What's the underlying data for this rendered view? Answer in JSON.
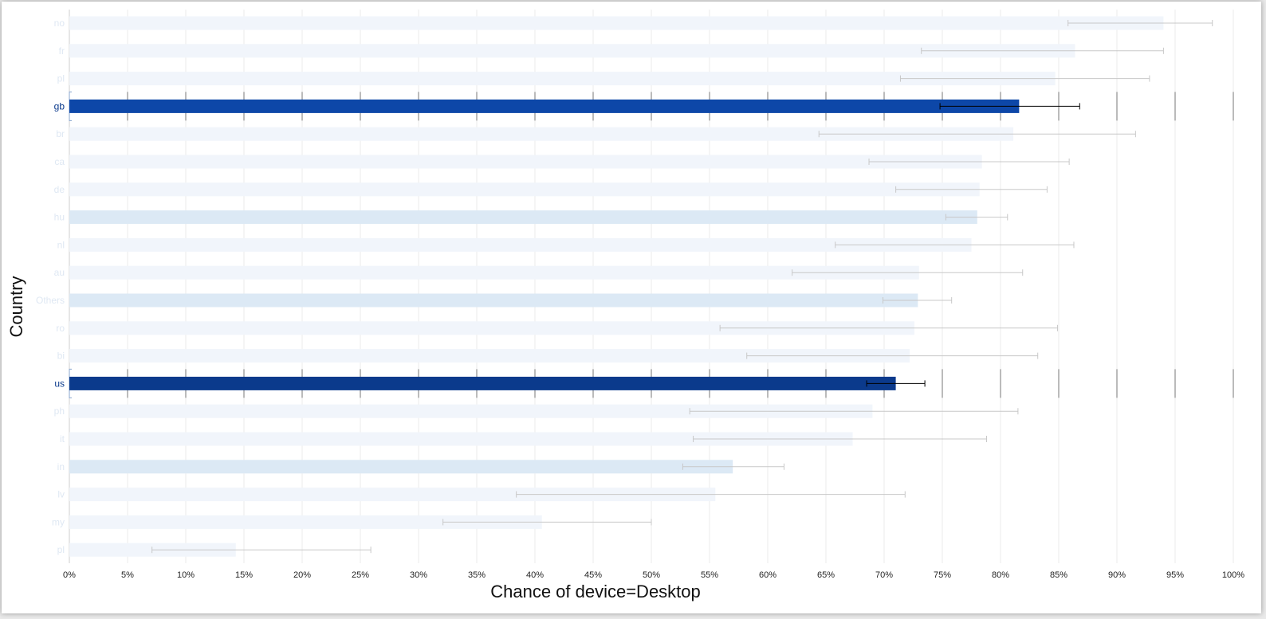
{
  "chart_data": {
    "type": "bar",
    "orientation": "horizontal",
    "xlabel": "Chance of device=Desktop",
    "ylabel": "Country",
    "xlim": [
      0,
      100
    ],
    "x_tick_labels": [
      "0%",
      "5%",
      "10%",
      "15%",
      "20%",
      "25%",
      "30%",
      "35%",
      "40%",
      "45%",
      "50%",
      "55%",
      "60%",
      "65%",
      "70%",
      "75%",
      "80%",
      "85%",
      "90%",
      "95%",
      "100%"
    ],
    "grid": "vertical",
    "highlighted": [
      "gb",
      "us"
    ],
    "categories": [
      "no",
      "fr",
      "pl",
      "gb",
      "br",
      "ca",
      "de",
      "hu",
      "nl",
      "au",
      "Others",
      "ro",
      "bi",
      "us",
      "ph",
      "it",
      "in",
      "lv",
      "my",
      "pl"
    ],
    "series": [
      {
        "values": [
          94,
          86.4,
          84.7,
          81.6,
          81.1,
          78.4,
          78.2,
          78.0,
          77.5,
          73.0,
          72.9,
          72.6,
          72.2,
          71.0,
          69.0,
          67.3,
          57.0,
          55.5,
          40.6,
          14.3
        ],
        "error_low": [
          85.8,
          73.2,
          71.4,
          74.8,
          64.4,
          68.7,
          71.0,
          75.3,
          65.8,
          62.1,
          69.9,
          55.9,
          58.2,
          68.5,
          53.3,
          53.6,
          52.7,
          38.4,
          32.1,
          7.1
        ],
        "error_high": [
          98.2,
          94.0,
          92.8,
          86.8,
          91.6,
          85.9,
          84.0,
          80.6,
          86.3,
          81.9,
          75.8,
          84.9,
          83.2,
          73.5,
          81.5,
          78.8,
          61.4,
          71.8,
          50.0,
          25.9
        ]
      }
    ]
  },
  "colors": {
    "gb_bar": "#0d47a8",
    "us_bar": "#0b3a8c",
    "dim_bar": "#f1f5fb",
    "mid_bar": "#dce9f5",
    "dim_label": "#dfe8f3",
    "hl_label": "#0b3a8c",
    "grid": "#ebebeb"
  }
}
